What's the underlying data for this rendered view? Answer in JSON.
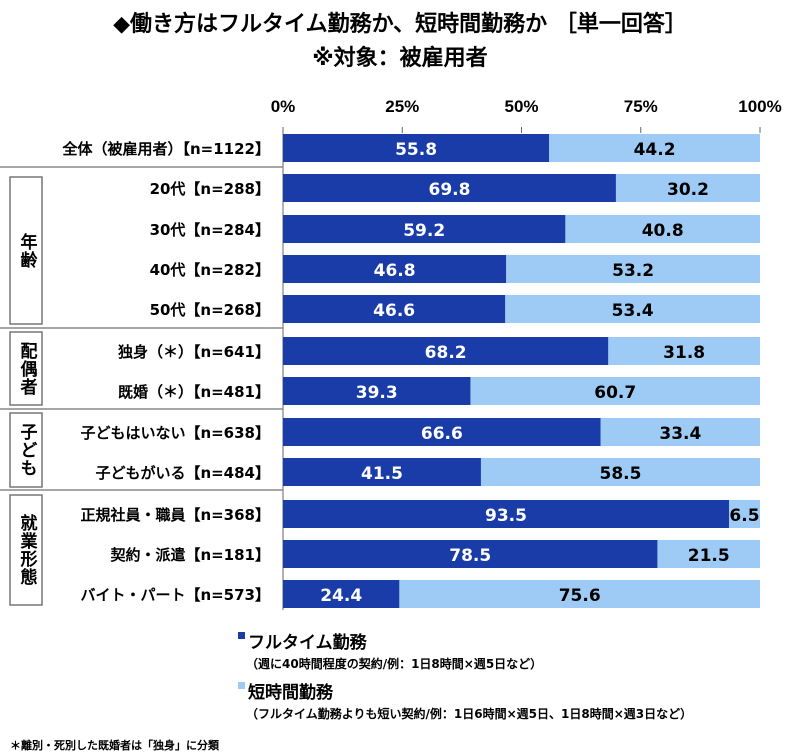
{
  "title": "◆働き方はフルタイム勤務か、短時間勤務か ［単一回答］",
  "subtitle": "※対象：被雇用者",
  "chart_data": {
    "type": "bar",
    "stacked": true,
    "orientation": "horizontal",
    "xlim": [
      0,
      100
    ],
    "x_ticks": [
      "0%",
      "25%",
      "50%",
      "75%",
      "100%"
    ],
    "categories": [
      "全体（被雇用者）【n=1122】",
      "20代【n=288】",
      "30代【n=284】",
      "40代【n=282】",
      "50代【n=268】",
      "独身（＊）【n=641】",
      "既婚（＊）【n=481】",
      "子どもはいない【n=638】",
      "子どもがいる【n=484】",
      "正規社員・職員【n=368】",
      "契約・派遣【n=181】",
      "バイト・パート【n=573】"
    ],
    "groups": [
      {
        "label": "年齢",
        "rows": [
          1,
          4
        ]
      },
      {
        "label": "配偶者",
        "rows": [
          5,
          6
        ]
      },
      {
        "label": "子ども",
        "rows": [
          7,
          8
        ]
      },
      {
        "label": "就業形態",
        "rows": [
          9,
          11
        ]
      }
    ],
    "series": [
      {
        "name": "フルタイム勤務",
        "description": "（週に40時間程度の契約/例：1日8時間×週5日など）",
        "color": "#1a3ca8",
        "values": [
          55.8,
          69.8,
          59.2,
          46.8,
          46.6,
          68.2,
          39.3,
          66.6,
          41.5,
          93.5,
          78.5,
          24.4
        ]
      },
      {
        "name": "短時間勤務",
        "description": "（フルタイム勤務よりも短い契約/例：1日6時間×週5日、1日8時間×週3日など）",
        "color": "#9dcbf5",
        "values": [
          44.2,
          30.2,
          40.8,
          53.2,
          53.4,
          31.8,
          60.7,
          33.4,
          58.5,
          6.5,
          21.5,
          75.6
        ]
      }
    ],
    "legend": "bottom"
  },
  "footnote": "＊離別・死別した既婚者は「独身」に分類"
}
